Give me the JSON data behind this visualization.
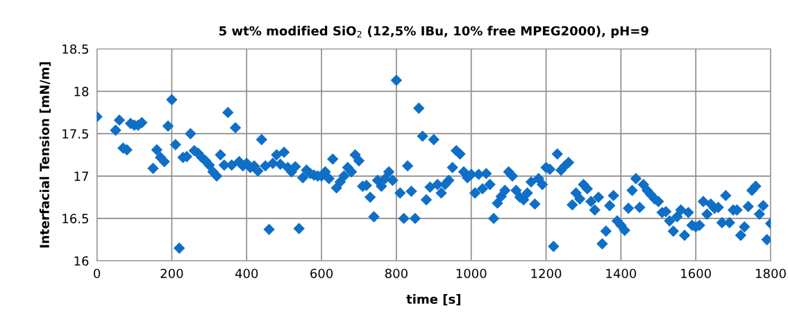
{
  "chart_data": {
    "type": "scatter",
    "title": "5 wt% modified SiO$_{2}$ (12,5% IBu, 10% free MPEG2000), pH=9",
    "xlabel": "time [s]",
    "ylabel": "Interfacial Tension [mN/m]",
    "xlim": [
      0,
      1800
    ],
    "xticks": [
      0,
      200,
      400,
      600,
      800,
      1000,
      1200,
      1400,
      1600,
      1800
    ],
    "ylim": [
      16,
      18.5
    ],
    "yticks": [
      16,
      16.5,
      17,
      17.5,
      18,
      18.5
    ],
    "grid": true,
    "marker": "diamond",
    "series": [
      {
        "color": "#0f6fc6",
        "x": [
          0,
          50,
          60,
          70,
          80,
          90,
          100,
          110,
          120,
          150,
          160,
          170,
          180,
          190,
          200,
          210,
          220,
          230,
          240,
          250,
          260,
          270,
          280,
          290,
          300,
          310,
          320,
          330,
          340,
          350,
          360,
          370,
          380,
          390,
          400,
          410,
          420,
          430,
          440,
          450,
          460,
          470,
          480,
          490,
          500,
          510,
          520,
          530,
          540,
          550,
          560,
          570,
          580,
          590,
          600,
          610,
          620,
          630,
          640,
          650,
          660,
          670,
          680,
          690,
          700,
          710,
          720,
          730,
          740,
          750,
          760,
          770,
          780,
          790,
          800,
          810,
          820,
          830,
          840,
          850,
          860,
          870,
          880,
          890,
          900,
          910,
          920,
          930,
          940,
          950,
          960,
          970,
          980,
          990,
          1000,
          1010,
          1020,
          1030,
          1040,
          1050,
          1060,
          1070,
          1080,
          1090,
          1100,
          1110,
          1120,
          1130,
          1140,
          1150,
          1160,
          1170,
          1180,
          1190,
          1200,
          1210,
          1220,
          1230,
          1240,
          1250,
          1260,
          1270,
          1280,
          1290,
          1300,
          1310,
          1320,
          1330,
          1340,
          1350,
          1360,
          1370,
          1380,
          1390,
          1400,
          1410,
          1420,
          1430,
          1440,
          1450,
          1460,
          1470,
          1480,
          1490,
          1500,
          1510,
          1520,
          1530,
          1540,
          1550,
          1560,
          1570,
          1580,
          1590,
          1600,
          1610,
          1620,
          1630,
          1640,
          1650,
          1660,
          1670,
          1680,
          1690,
          1700,
          1710,
          1720,
          1730,
          1740,
          1750,
          1760,
          1770,
          1780,
          1790,
          1800
        ],
        "values": [
          17.7,
          17.54,
          17.66,
          17.33,
          17.31,
          17.62,
          17.6,
          17.6,
          17.63,
          17.09,
          17.31,
          17.22,
          17.17,
          17.59,
          17.9,
          17.37,
          16.15,
          17.22,
          17.23,
          17.5,
          17.3,
          17.27,
          17.22,
          17.18,
          17.13,
          17.05,
          17.0,
          17.25,
          17.13,
          17.75,
          17.13,
          17.57,
          17.17,
          17.12,
          17.15,
          17.1,
          17.12,
          17.06,
          17.43,
          17.12,
          16.37,
          17.15,
          17.25,
          17.14,
          17.28,
          17.1,
          17.05,
          17.11,
          16.38,
          16.98,
          17.07,
          17.03,
          17.01,
          17.0,
          17.0,
          17.05,
          16.97,
          17.2,
          16.86,
          16.93,
          17.0,
          17.1,
          17.05,
          17.25,
          17.18,
          16.88,
          16.89,
          16.75,
          16.52,
          16.95,
          16.88,
          16.97,
          17.05,
          16.95,
          18.13,
          16.8,
          16.5,
          17.12,
          16.82,
          16.5,
          17.8,
          17.47,
          16.72,
          16.87,
          17.43,
          16.9,
          16.8,
          16.9,
          16.95,
          17.1,
          17.3,
          17.26,
          17.05,
          16.98,
          17.02,
          16.8,
          17.02,
          16.85,
          17.03,
          16.9,
          16.5,
          16.68,
          16.76,
          16.83,
          17.05,
          17.0,
          16.83,
          16.75,
          16.72,
          16.8,
          16.93,
          16.67,
          16.97,
          16.9,
          17.1,
          17.08,
          16.17,
          17.26,
          17.07,
          17.12,
          17.16,
          16.66,
          16.8,
          16.73,
          16.9,
          16.85,
          16.7,
          16.6,
          16.75,
          16.2,
          16.35,
          16.65,
          16.77,
          16.47,
          16.42,
          16.36,
          16.62,
          16.83,
          16.97,
          16.63,
          16.9,
          16.83,
          16.78,
          16.73,
          16.7,
          16.57,
          16.58,
          16.47,
          16.35,
          16.52,
          16.6,
          16.3,
          16.57,
          16.42,
          16.4,
          16.42,
          16.7,
          16.55,
          16.67,
          16.62,
          16.63,
          16.45,
          16.77,
          16.45,
          16.6,
          16.6,
          16.3,
          16.4,
          16.64,
          16.83,
          16.88,
          16.55,
          16.65,
          16.25,
          16.44
        ]
      }
    ]
  }
}
